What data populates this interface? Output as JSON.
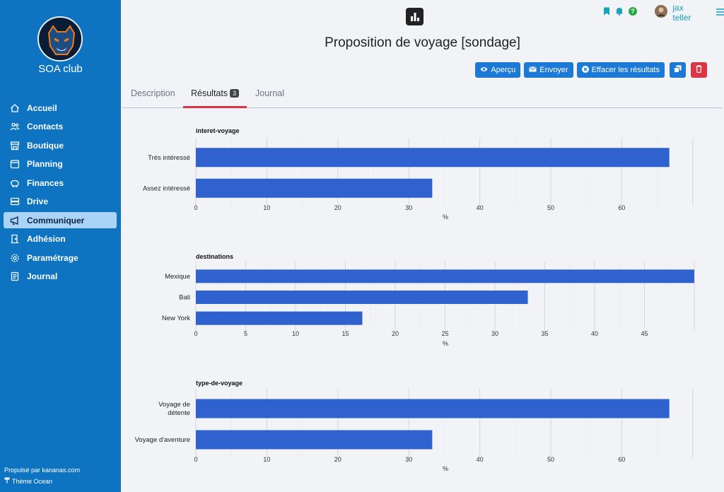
{
  "sidebar": {
    "club_name": "SOA club",
    "items": [
      {
        "label": "Accueil",
        "icon": "home-icon"
      },
      {
        "label": "Contacts",
        "icon": "people-icon"
      },
      {
        "label": "Boutique",
        "icon": "store-icon"
      },
      {
        "label": "Planning",
        "icon": "calendar-icon"
      },
      {
        "label": "Finances",
        "icon": "piggy-bank-icon"
      },
      {
        "label": "Drive",
        "icon": "drive-icon"
      },
      {
        "label": "Communiquer",
        "icon": "megaphone-icon",
        "active": true
      },
      {
        "label": "Adhésion",
        "icon": "door-icon"
      },
      {
        "label": "Paramétrage",
        "icon": "gear-icon"
      },
      {
        "label": "Journal",
        "icon": "journal-icon"
      }
    ],
    "footer_powered": "Propulsé par kananas.com",
    "footer_theme": "Thème Ocean"
  },
  "topbar": {
    "username": "jax teller"
  },
  "page": {
    "title": "Proposition de voyage [sondage]"
  },
  "actions": {
    "preview": "Aperçu",
    "send": "Envoyer",
    "clear": "Effacer les résultats"
  },
  "tabs": [
    {
      "label": "Description"
    },
    {
      "label": "Résultats",
      "badge": "3",
      "active": true
    },
    {
      "label": "Journal"
    }
  ],
  "colors": {
    "sidebar": "#0e74c2",
    "bar": "#2f62cf",
    "accent": "#dc3545",
    "button": "#1c7ad6"
  },
  "chart_data": [
    {
      "type": "bar",
      "orientation": "horizontal",
      "title": "interet-voyage",
      "categories": [
        "Très intéressé",
        "Assez intéressé"
      ],
      "values": [
        66.7,
        33.3
      ],
      "xlabel": "%",
      "xticks": [
        0,
        10,
        20,
        30,
        40,
        50,
        60
      ],
      "xlim": [
        0,
        70
      ]
    },
    {
      "type": "bar",
      "orientation": "horizontal",
      "title": "destinations",
      "categories": [
        "Mexique",
        "Bali",
        "New York"
      ],
      "values": [
        50,
        33.3,
        16.7
      ],
      "xlabel": "%",
      "xticks": [
        0,
        5,
        10,
        15,
        20,
        25,
        30,
        35,
        40,
        45
      ],
      "xlim": [
        0,
        50
      ]
    },
    {
      "type": "bar",
      "orientation": "horizontal",
      "title": "type-de-voyage",
      "categories": [
        [
          "Voyage de",
          "détente"
        ],
        [
          "Voyage d'aventure"
        ]
      ],
      "values": [
        66.7,
        33.3
      ],
      "xlabel": "%",
      "xticks": [
        0,
        10,
        20,
        30,
        40,
        50,
        60
      ],
      "xlim": [
        0,
        70
      ]
    }
  ]
}
